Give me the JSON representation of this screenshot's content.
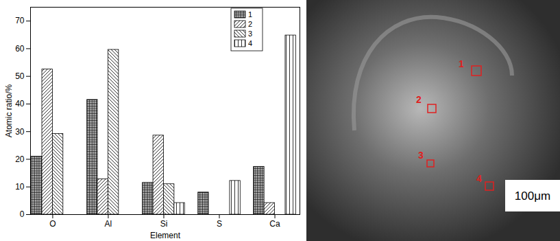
{
  "chart_data": {
    "type": "bar",
    "categories": [
      "O",
      "Al",
      "Si",
      "S",
      "Ca"
    ],
    "x_label": "Element",
    "y_label": "Atomic ratio/%",
    "ylim": [
      0,
      75
    ],
    "yticks": [
      0,
      10,
      20,
      30,
      40,
      50,
      60,
      70
    ],
    "legend": "upper right",
    "series": [
      {
        "name": "1",
        "color": "#000000",
        "marker": "grid",
        "values": [
          21,
          41.5,
          11.5,
          8,
          17.3
        ]
      },
      {
        "name": "2",
        "color": "#000000",
        "marker": "slash",
        "values": [
          52.5,
          12.8,
          28.6,
          0,
          4.2
        ]
      },
      {
        "name": "3",
        "color": "#000000",
        "marker": "backslash",
        "values": [
          29.2,
          59.6,
          11,
          0,
          0
        ]
      },
      {
        "name": "4",
        "color": "#000000",
        "marker": "vertical",
        "values": [
          0,
          0,
          4.2,
          12.2,
          64.8
        ]
      }
    ]
  },
  "image": {
    "markers": [
      "1",
      "2",
      "3",
      "4"
    ],
    "scale_bar": "100μm"
  }
}
